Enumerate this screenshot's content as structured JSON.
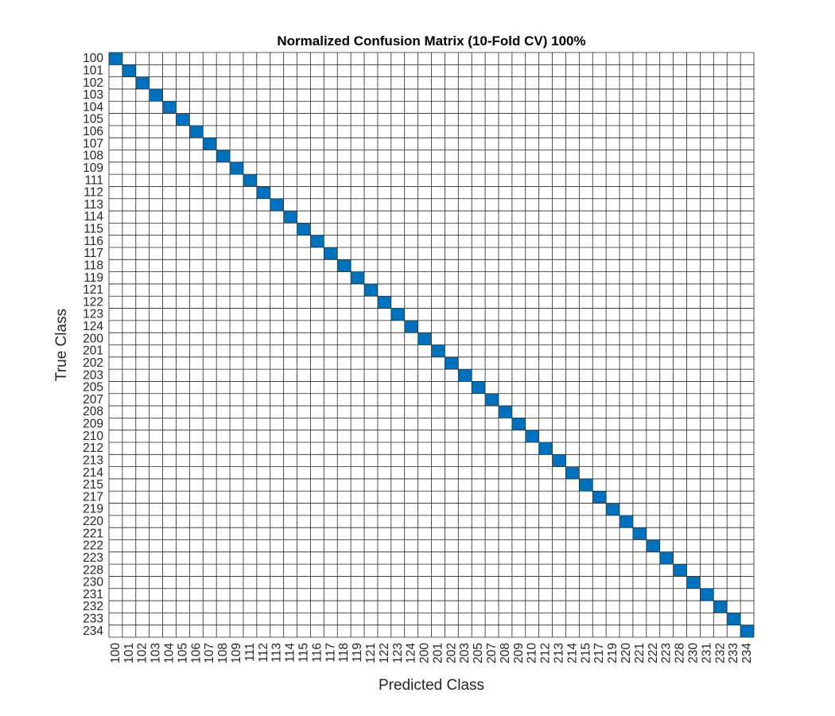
{
  "chart_data": {
    "type": "heatmap",
    "title": "Normalized Confusion Matrix (10-Fold CV) 100%",
    "xlabel": "Predicted Class",
    "ylabel": "True Class",
    "categories": [
      "100",
      "101",
      "102",
      "103",
      "104",
      "105",
      "106",
      "107",
      "108",
      "109",
      "111",
      "112",
      "113",
      "114",
      "115",
      "116",
      "117",
      "118",
      "119",
      "121",
      "122",
      "123",
      "124",
      "200",
      "201",
      "202",
      "203",
      "205",
      "207",
      "208",
      "209",
      "210",
      "212",
      "213",
      "214",
      "215",
      "217",
      "219",
      "220",
      "221",
      "222",
      "223",
      "228",
      "230",
      "231",
      "232",
      "233",
      "234"
    ],
    "matrix_description": "identity",
    "diagonal_value": 1.0,
    "off_diagonal_value": 0.0,
    "colors": {
      "filled": "#0072bd",
      "empty": "#ffffff",
      "grid": "#262626"
    }
  }
}
